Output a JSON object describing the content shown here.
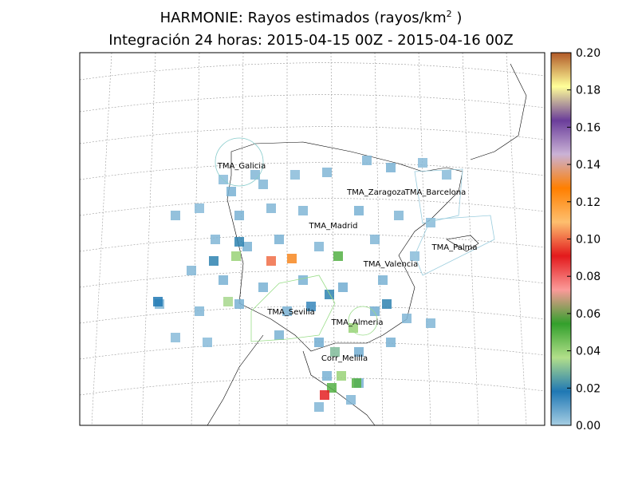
{
  "chart_data": {
    "type": "map",
    "title": "HARMONIE: Rayos estimados (rayos/km",
    "title_sup": "2",
    "title_end": " )",
    "subtitle": "Integración 24 horas: 2015-04-15 00Z - 2015-04-16 00Z",
    "colormap": [
      "#a6cee3",
      "#1f78b4",
      "#b2df8a",
      "#33a02c",
      "#fb9a99",
      "#e31a1c",
      "#fdbf6f",
      "#ff7f00",
      "#cab2d6",
      "#6a3d9a",
      "#ffff99",
      "#b15928"
    ],
    "ylim": [
      0,
      0.2
    ],
    "yticks": [
      {
        "value": 0,
        "label": "0.00"
      },
      {
        "value": 0.02,
        "label": "0.02"
      },
      {
        "value": 0.04,
        "label": "0.04"
      },
      {
        "value": 0.06,
        "label": "0.06"
      },
      {
        "value": 0.08,
        "label": "0.08"
      },
      {
        "value": 0.1,
        "label": "0.10"
      },
      {
        "value": 0.12,
        "label": "0.12"
      },
      {
        "value": 0.14,
        "label": "0.14"
      },
      {
        "value": 0.16,
        "label": "0.16"
      },
      {
        "value": 0.18,
        "label": "0.18"
      },
      {
        "value": 0.2,
        "label": "0.20"
      }
    ],
    "labels": [
      "TMA_Galicia",
      "TMA_Zaragoza",
      "TMA_Barcelona",
      "TMA_Madrid",
      "TMA_Palma",
      "TMA_Valencia",
      "TMA_Sevilla",
      "TMA_Almeria",
      "Corr_Melilla"
    ],
    "cells": [
      {
        "lon": -12.5,
        "lat": 40.7,
        "value": 0.005
      },
      {
        "lon": -11.0,
        "lat": 41.0,
        "value": 0.004
      },
      {
        "lon": -9.0,
        "lat": 41.7,
        "value": 0.006
      },
      {
        "lon": -7.0,
        "lat": 42.0,
        "value": 0.005
      },
      {
        "lon": -5.0,
        "lat": 42.4,
        "value": 0.004
      },
      {
        "lon": -3.0,
        "lat": 42.5,
        "value": 0.005
      },
      {
        "lon": -0.5,
        "lat": 43.0,
        "value": 0.005
      },
      {
        "lon": 1.0,
        "lat": 42.7,
        "value": 0.006
      },
      {
        "lon": 3.0,
        "lat": 42.9,
        "value": 0.004
      },
      {
        "lon": 4.5,
        "lat": 42.4,
        "value": 0.004
      },
      {
        "lon": -8.5,
        "lat": 40.7,
        "value": 0.006
      },
      {
        "lon": -6.5,
        "lat": 41.0,
        "value": 0.005
      },
      {
        "lon": -4.5,
        "lat": 40.9,
        "value": 0.005
      },
      {
        "lon": -1.0,
        "lat": 40.9,
        "value": 0.006
      },
      {
        "lon": 1.5,
        "lat": 40.7,
        "value": 0.005
      },
      {
        "lon": 3.5,
        "lat": 40.4,
        "value": 0.004
      },
      {
        "lon": -10.0,
        "lat": 39.7,
        "value": 0.005
      },
      {
        "lon": -8.0,
        "lat": 39.4,
        "value": 0.006
      },
      {
        "lon": -6.0,
        "lat": 39.7,
        "value": 0.006
      },
      {
        "lon": -3.5,
        "lat": 39.4,
        "value": 0.005
      },
      {
        "lon": 0.0,
        "lat": 39.7,
        "value": 0.005
      },
      {
        "lon": 2.5,
        "lat": 39.0,
        "value": 0.004
      },
      {
        "lon": -11.5,
        "lat": 38.4,
        "value": 0.005
      },
      {
        "lon": -9.5,
        "lat": 38.0,
        "value": 0.006
      },
      {
        "lon": -7.0,
        "lat": 37.7,
        "value": 0.006
      },
      {
        "lon": -4.5,
        "lat": 38.0,
        "value": 0.006
      },
      {
        "lon": -2.0,
        "lat": 37.7,
        "value": 0.007
      },
      {
        "lon": 0.5,
        "lat": 38.0,
        "value": 0.006
      },
      {
        "lon": -13.5,
        "lat": 37.0,
        "value": 0.005
      },
      {
        "lon": -11.0,
        "lat": 36.7,
        "value": 0.005
      },
      {
        "lon": -8.5,
        "lat": 37.0,
        "value": 0.006
      },
      {
        "lon": -5.5,
        "lat": 36.7,
        "value": 0.006
      },
      {
        "lon": 0.0,
        "lat": 36.7,
        "value": 0.007
      },
      {
        "lon": 2.0,
        "lat": 36.4,
        "value": 0.005
      },
      {
        "lon": -12.5,
        "lat": 35.6,
        "value": 0.004
      },
      {
        "lon": -10.5,
        "lat": 35.4,
        "value": 0.004
      },
      {
        "lon": -6.0,
        "lat": 35.7,
        "value": 0.006
      },
      {
        "lon": -3.5,
        "lat": 35.4,
        "value": 0.007
      },
      {
        "lon": -1.0,
        "lat": 35.0,
        "value": 0.007
      },
      {
        "lon": 1.0,
        "lat": 35.4,
        "value": 0.006
      },
      {
        "lon": -3.0,
        "lat": 34.0,
        "value": 0.006
      },
      {
        "lon": -1.0,
        "lat": 33.7,
        "value": 0.006
      },
      {
        "lon": -3.5,
        "lat": 32.7,
        "value": 0.005
      },
      {
        "lon": -1.5,
        "lat": 33.0,
        "value": 0.005
      },
      {
        "lon": 3.5,
        "lat": 36.2,
        "value": 0.005
      },
      {
        "lon": -7.5,
        "lat": 42.4,
        "value": 0.005
      },
      {
        "lon": -9.5,
        "lat": 42.2,
        "value": 0.004
      },
      {
        "lon": -13.6,
        "lat": 37.1,
        "value": 0.018
      },
      {
        "lon": -8.5,
        "lat": 39.6,
        "value": 0.02
      },
      {
        "lon": -10.1,
        "lat": 38.8,
        "value": 0.02
      },
      {
        "lon": -6.5,
        "lat": 38.8,
        "value": 0.1
      },
      {
        "lon": -5.2,
        "lat": 38.9,
        "value": 0.13
      },
      {
        "lon": -2.3,
        "lat": 39.0,
        "value": 0.05
      },
      {
        "lon": -8.7,
        "lat": 39.0,
        "value": 0.04
      },
      {
        "lon": -9.2,
        "lat": 37.1,
        "value": 0.035
      },
      {
        "lon": -2.85,
        "lat": 37.4,
        "value": 0.02
      },
      {
        "lon": -1.35,
        "lat": 36.0,
        "value": 0.04
      },
      {
        "lon": -2.1,
        "lat": 34.0,
        "value": 0.04
      },
      {
        "lon": -1.15,
        "lat": 33.7,
        "value": 0.05
      },
      {
        "lon": -2.7,
        "lat": 33.5,
        "value": 0.05
      },
      {
        "lon": -3.15,
        "lat": 33.2,
        "value": 0.09
      },
      {
        "lon": -2.5,
        "lat": 35.0,
        "value": 0.03
      },
      {
        "lon": 0.75,
        "lat": 37.0,
        "value": 0.02
      },
      {
        "lon": -4.0,
        "lat": 36.9,
        "value": 0.015
      }
    ]
  }
}
